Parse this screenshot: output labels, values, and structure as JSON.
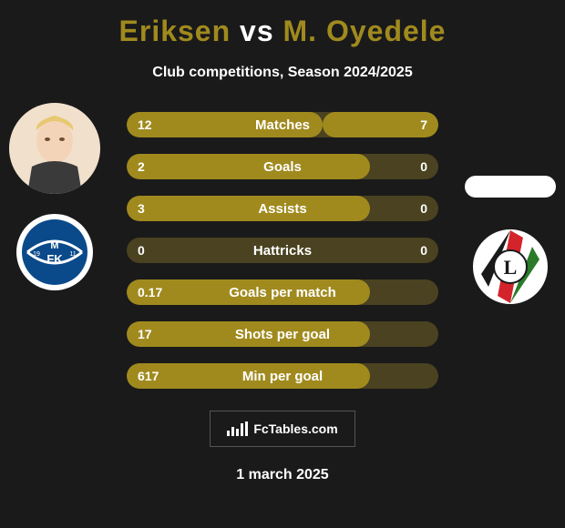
{
  "title_color": "#a08a1e",
  "player1_name": "Eriksen",
  "vs_text": "vs",
  "player2_name": "M. Oyedele",
  "subtitle": "Club competitions, Season 2024/2025",
  "stats": [
    {
      "label": "Matches",
      "left_val": "12",
      "right_val": "7",
      "left_pct": 63,
      "right_pct": 37
    },
    {
      "label": "Goals",
      "left_val": "2",
      "right_val": "0",
      "left_pct": 78,
      "right_pct": 0
    },
    {
      "label": "Assists",
      "left_val": "3",
      "right_val": "0",
      "left_pct": 78,
      "right_pct": 0
    },
    {
      "label": "Hattricks",
      "left_val": "0",
      "right_val": "0",
      "left_pct": 0,
      "right_pct": 0
    },
    {
      "label": "Goals per match",
      "left_val": "0.17",
      "right_val": "",
      "left_pct": 78,
      "right_pct": 0
    },
    {
      "label": "Shots per goal",
      "left_val": "17",
      "right_val": "",
      "left_pct": 78,
      "right_pct": 0
    },
    {
      "label": "Min per goal",
      "left_val": "617",
      "right_val": "",
      "left_pct": 78,
      "right_pct": 0
    }
  ],
  "bar_fill_color": "#a08a1e",
  "bar_bg_color": "#4a4220",
  "footer_brand": "FcTables.com",
  "footer_date": "1 march 2025",
  "club1": {
    "bg": "#0a4a8a",
    "accent": "#ffffff",
    "text": "MFK"
  },
  "club2": {
    "bg": "#ffffff",
    "stripe1": "#d4232a",
    "stripe2": "#2a7a2a",
    "stripe3": "#1a1a1a",
    "letter": "L"
  }
}
